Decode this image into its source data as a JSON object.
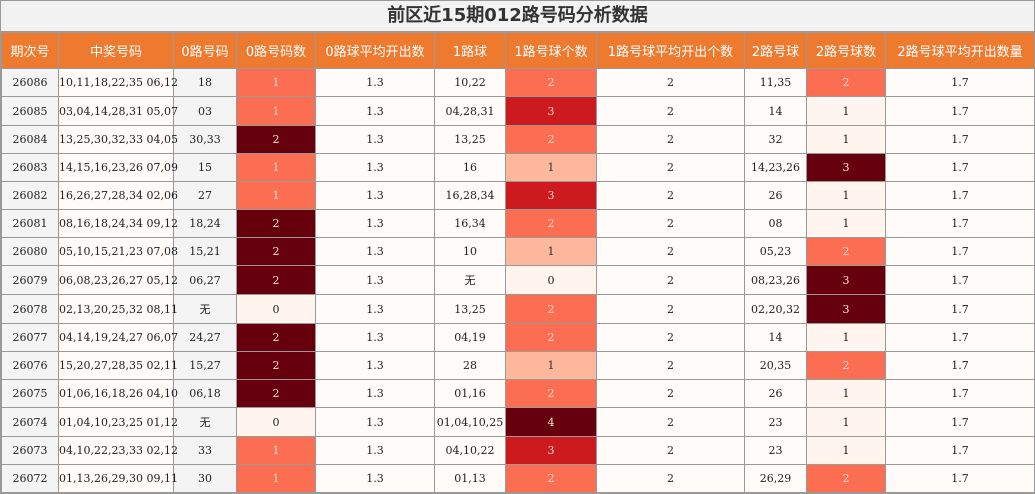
{
  "title": "前区近15期012路号码分析数据",
  "headers": [
    "期次号",
    "中奖号码",
    "0路号码",
    "0路号码数",
    "0路球平均开出数",
    "1路球",
    "1路号球个数",
    "1路号球平均开出个数",
    "2路号球",
    "2路号球数",
    "2路号球平均开出数量"
  ],
  "rows": [
    {
      "issue": "26086",
      "nums": "10,11,18,22,35 06,12",
      "r0": "18",
      "r0c": "1",
      "r0avg": "1.3",
      "r1": "10,22",
      "r1c": "2",
      "r1avg": "2",
      "r2": "11,35",
      "r2c": "2",
      "r2avg": "1.7"
    },
    {
      "issue": "26085",
      "nums": "03,04,14,28,31 05,07",
      "r0": "03",
      "r0c": "1",
      "r0avg": "1.3",
      "r1": "04,28,31",
      "r1c": "3",
      "r1avg": "2",
      "r2": "14",
      "r2c": "1",
      "r2avg": "1.7"
    },
    {
      "issue": "26084",
      "nums": "13,25,30,32,33 04,05",
      "r0": "30,33",
      "r0c": "2",
      "r0avg": "1.3",
      "r1": "13,25",
      "r1c": "2",
      "r1avg": "2",
      "r2": "32",
      "r2c": "1",
      "r2avg": "1.7"
    },
    {
      "issue": "26083",
      "nums": "14,15,16,23,26 07,09",
      "r0": "15",
      "r0c": "1",
      "r0avg": "1.3",
      "r1": "16",
      "r1c": "1",
      "r1avg": "2",
      "r2": "14,23,26",
      "r2c": "3",
      "r2avg": "1.7"
    },
    {
      "issue": "26082",
      "nums": "16,26,27,28,34 02,06",
      "r0": "27",
      "r0c": "1",
      "r0avg": "1.3",
      "r1": "16,28,34",
      "r1c": "3",
      "r1avg": "2",
      "r2": "26",
      "r2c": "1",
      "r2avg": "1.7"
    },
    {
      "issue": "26081",
      "nums": "08,16,18,24,34 09,12",
      "r0": "18,24",
      "r0c": "2",
      "r0avg": "1.3",
      "r1": "16,34",
      "r1c": "2",
      "r1avg": "2",
      "r2": "08",
      "r2c": "1",
      "r2avg": "1.7"
    },
    {
      "issue": "26080",
      "nums": "05,10,15,21,23 07,08",
      "r0": "15,21",
      "r0c": "2",
      "r0avg": "1.3",
      "r1": "10",
      "r1c": "1",
      "r1avg": "2",
      "r2": "05,23",
      "r2c": "2",
      "r2avg": "1.7"
    },
    {
      "issue": "26079",
      "nums": "06,08,23,26,27 05,12",
      "r0": "06,27",
      "r0c": "2",
      "r0avg": "1.3",
      "r1": "无",
      "r1c": "0",
      "r1avg": "2",
      "r2": "08,23,26",
      "r2c": "3",
      "r2avg": "1.7"
    },
    {
      "issue": "26078",
      "nums": "02,13,20,25,32 08,11",
      "r0": "无",
      "r0c": "0",
      "r0avg": "1.3",
      "r1": "13,25",
      "r1c": "2",
      "r1avg": "2",
      "r2": "02,20,32",
      "r2c": "3",
      "r2avg": "1.7"
    },
    {
      "issue": "26077",
      "nums": "04,14,19,24,27 06,07",
      "r0": "24,27",
      "r0c": "2",
      "r0avg": "1.3",
      "r1": "04,19",
      "r1c": "2",
      "r1avg": "2",
      "r2": "14",
      "r2c": "1",
      "r2avg": "1.7"
    },
    {
      "issue": "26076",
      "nums": "15,20,27,28,35 02,11",
      "r0": "15,27",
      "r0c": "2",
      "r0avg": "1.3",
      "r1": "28",
      "r1c": "1",
      "r1avg": "2",
      "r2": "20,35",
      "r2c": "2",
      "r2avg": "1.7"
    },
    {
      "issue": "26075",
      "nums": "01,06,16,18,26 04,10",
      "r0": "06,18",
      "r0c": "2",
      "r0avg": "1.3",
      "r1": "01,16",
      "r1c": "2",
      "r1avg": "2",
      "r2": "26",
      "r2c": "1",
      "r2avg": "1.7"
    },
    {
      "issue": "26074",
      "nums": "01,04,10,23,25 01,12",
      "r0": "无",
      "r0c": "0",
      "r0avg": "1.3",
      "r1": "01,04,10,25",
      "r1c": "4",
      "r1avg": "2",
      "r2": "23",
      "r2c": "1",
      "r2avg": "1.7"
    },
    {
      "issue": "26073",
      "nums": "04,10,22,23,33 02,12",
      "r0": "33",
      "r0c": "1",
      "r0avg": "1.3",
      "r1": "04,10,22",
      "r1c": "3",
      "r1avg": "2",
      "r2": "23",
      "r2c": "1",
      "r2avg": "1.7"
    },
    {
      "issue": "26072",
      "nums": "01,13,26,29,30 09,11",
      "r0": "30",
      "r0c": "1",
      "r0avg": "1.3",
      "r1": "01,13",
      "r1c": "2",
      "r1avg": "2",
      "r2": "26,29",
      "r2c": "2",
      "r2avg": "1.7"
    }
  ],
  "colors": {
    "header_bg": "#ee7a2f",
    "level_zero": "#fff4ee",
    "level_low": "#fcb79c",
    "level_mid": "#fc6e51",
    "level_high": "#cc1a1e",
    "level_max": "#67000d"
  }
}
